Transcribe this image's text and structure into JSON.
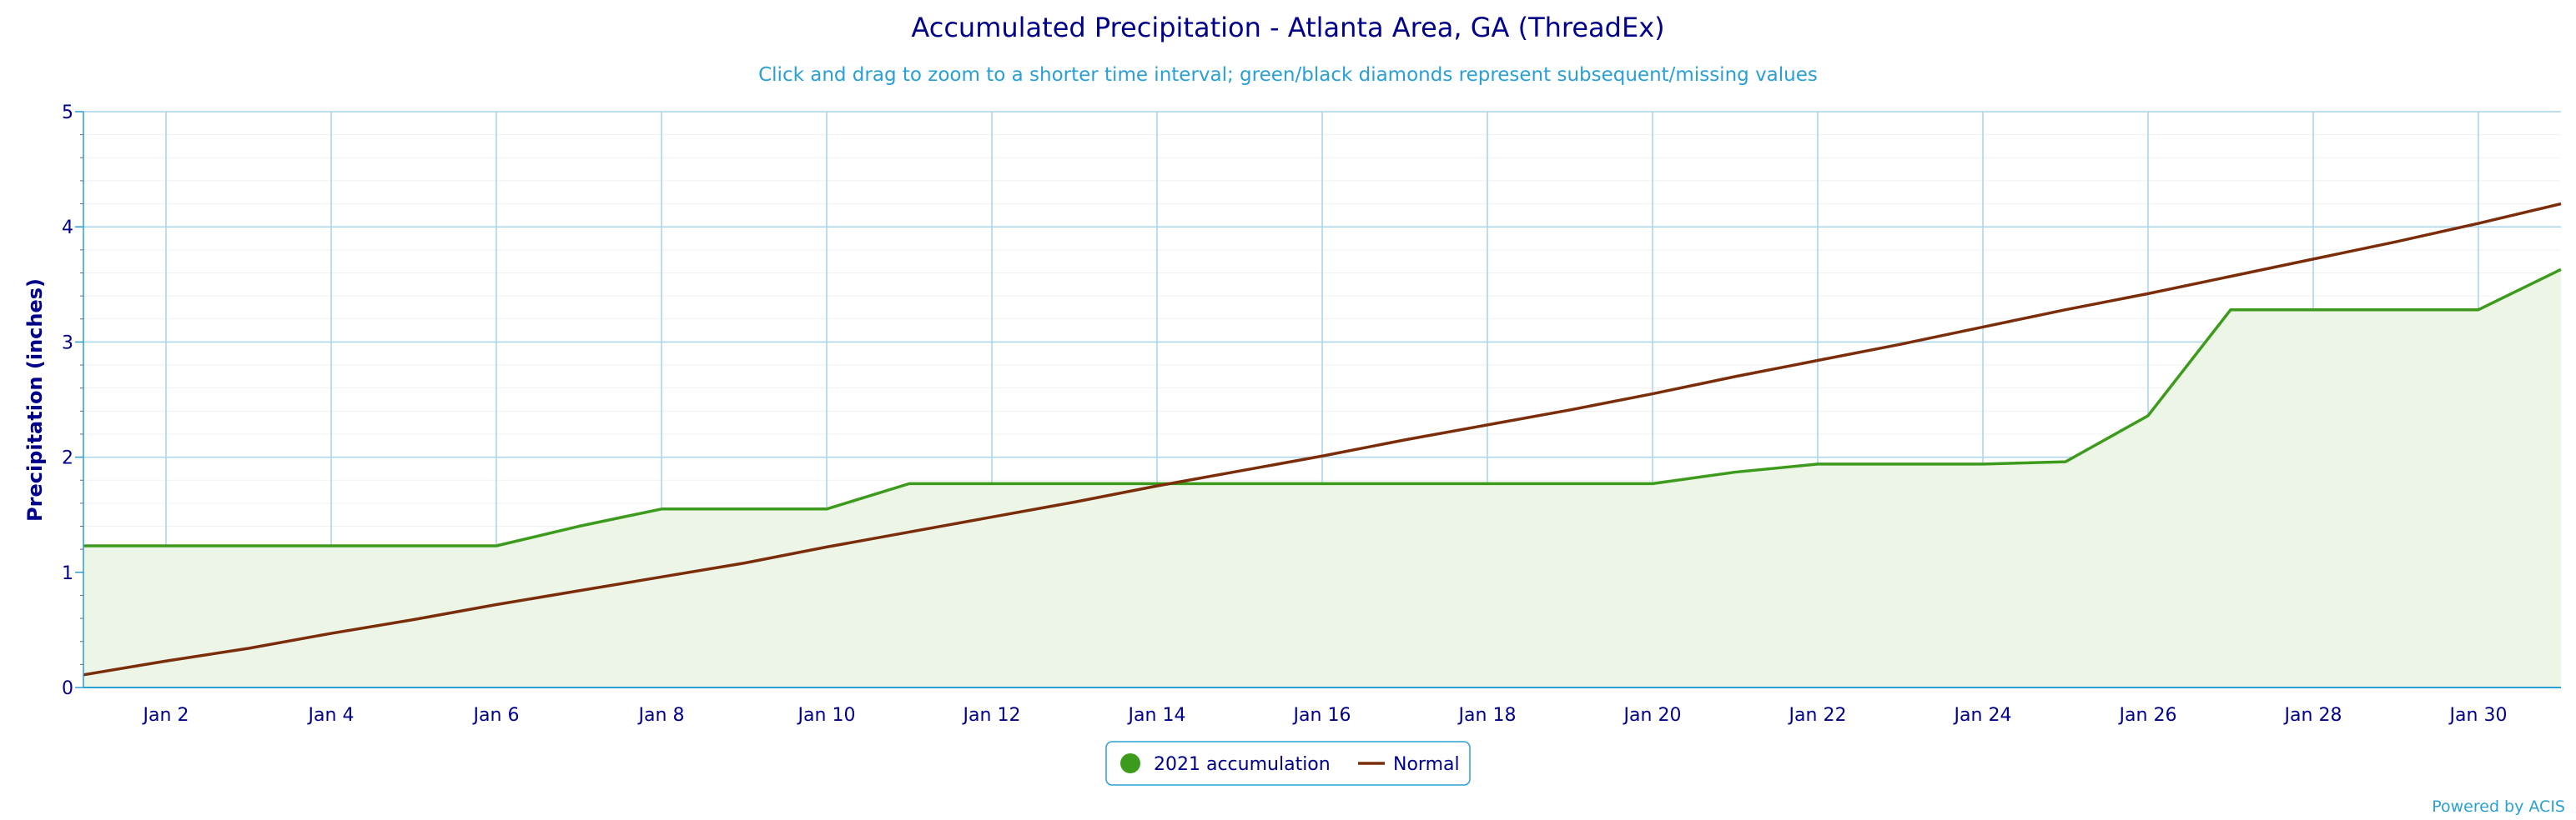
{
  "chart_data": {
    "type": "area",
    "title": "Accumulated Precipitation - Atlanta Area, GA (ThreadEx)",
    "subtitle": "Click and drag to zoom to a shorter time interval; green/black diamonds represent subsequent/missing values",
    "ylabel": "Precipitation (inches)",
    "xlabel": "",
    "xlim": [
      1,
      31
    ],
    "ylim": [
      0,
      5
    ],
    "y_ticks": [
      "0",
      "1",
      "2",
      "3",
      "4",
      "5"
    ],
    "y_tick_values": [
      0,
      1,
      2,
      3,
      4,
      5
    ],
    "x_ticks": [
      "Jan 2",
      "Jan 4",
      "Jan 6",
      "Jan 8",
      "Jan 10",
      "Jan 12",
      "Jan 14",
      "Jan 16",
      "Jan 18",
      "Jan 20",
      "Jan 22",
      "Jan 24",
      "Jan 26",
      "Jan 28",
      "Jan 30"
    ],
    "x_tick_values": [
      2,
      4,
      6,
      8,
      10,
      12,
      14,
      16,
      18,
      20,
      22,
      24,
      26,
      28,
      30
    ],
    "x": [
      1,
      2,
      3,
      4,
      5,
      6,
      7,
      8,
      9,
      10,
      11,
      12,
      13,
      14,
      15,
      16,
      17,
      18,
      19,
      20,
      21,
      22,
      23,
      24,
      25,
      26,
      27,
      28,
      29,
      30,
      31
    ],
    "series": [
      {
        "name": "2021 accumulation",
        "color": "#3c9b1c",
        "fill": "#edf5e7",
        "values": [
          1.23,
          1.23,
          1.23,
          1.23,
          1.23,
          1.23,
          1.4,
          1.55,
          1.55,
          1.55,
          1.77,
          1.77,
          1.77,
          1.77,
          1.77,
          1.77,
          1.77,
          1.77,
          1.77,
          1.77,
          1.87,
          1.94,
          1.94,
          1.94,
          1.96,
          2.36,
          3.28,
          3.28,
          3.28,
          3.28,
          3.63
        ]
      },
      {
        "name": "Normal",
        "color": "#7b2d0a",
        "values": [
          0.11,
          0.23,
          0.34,
          0.47,
          0.59,
          0.72,
          0.84,
          0.96,
          1.08,
          1.22,
          1.35,
          1.48,
          1.61,
          1.75,
          1.88,
          2.01,
          2.15,
          2.28,
          2.41,
          2.55,
          2.7,
          2.84,
          2.98,
          3.13,
          3.28,
          3.42,
          3.57,
          3.72,
          3.87,
          4.03,
          4.2
        ]
      }
    ],
    "grid": true,
    "legend_position": "bottom-center",
    "credit": "Powered by ACIS"
  }
}
